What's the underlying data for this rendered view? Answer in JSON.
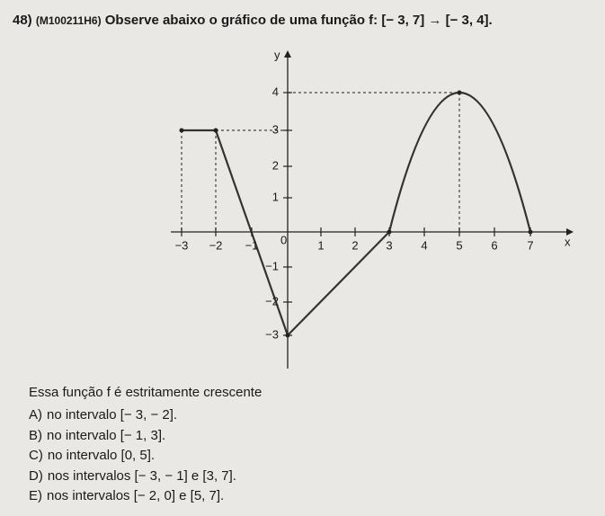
{
  "question": {
    "number": "48)",
    "code": "(M100211H6)",
    "prompt": "Observe abaixo o gráfico de uma função f: [− 3, 7] → [− 3, 4]."
  },
  "figure": {
    "x_axis_label": "x",
    "y_axis_label": "y",
    "origin_label": "0",
    "x_ticks": [
      "−3",
      "−2",
      "−1",
      "1",
      "2",
      "3",
      "4",
      "5",
      "6",
      "7"
    ],
    "y_ticks": [
      "4",
      "3",
      "2",
      "1",
      "−1",
      "−2",
      "−3"
    ]
  },
  "statement": "Essa função f é estritamente crescente",
  "options": [
    {
      "letter": "A)",
      "text": "no intervalo [− 3, − 2]."
    },
    {
      "letter": "B)",
      "text": "no intervalo [− 1, 3]."
    },
    {
      "letter": "C)",
      "text": "no intervalo [0, 5]."
    },
    {
      "letter": "D)",
      "text": "nos intervalos [− 3, − 1] e [3, 7]."
    },
    {
      "letter": "E)",
      "text": "nos intervalos [− 2, 0] e [5, 7]."
    }
  ]
}
